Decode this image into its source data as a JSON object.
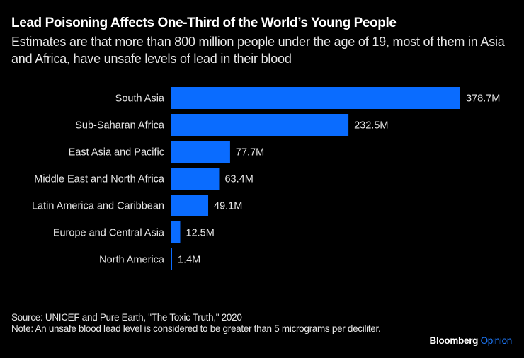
{
  "header": {
    "title": "Lead Poisoning Affects One-Third of the World’s Young People",
    "subtitle": "Estimates are that more than 800 million people under the age of 19, most of them in Asia and Africa, have unsafe levels of lead in their blood"
  },
  "chart_data": {
    "type": "bar",
    "orientation": "horizontal",
    "title": "Lead Poisoning Affects One-Third of the World’s Young People",
    "subtitle": "Estimates are that more than 800 million people under the age of 19, most of them in Asia and Africa, have unsafe levels of lead in their blood",
    "categories": [
      "South Asia",
      "Sub-Saharan Africa",
      "East Asia and Pacific",
      "Middle East and North Africa",
      "Latin America and Caribbean",
      "Europe and Central Asia",
      "North America"
    ],
    "values": [
      378.7,
      232.5,
      77.7,
      63.4,
      49.1,
      12.5,
      1.4
    ],
    "value_labels": [
      "378.7M",
      "232.5M",
      "77.7M",
      "63.4M",
      "49.1M",
      "12.5M",
      "1.4M"
    ],
    "unit": "million people",
    "xlabel": "",
    "ylabel": "",
    "xlim": [
      0,
      378.7
    ],
    "grid": false,
    "legend": "none",
    "bar_color": "#0a6cff"
  },
  "footer": {
    "source": "Source: UNICEF and Pure Earth, \"The Toxic Truth,\" 2020",
    "note": "Note: An unsafe blood lead level is considered to be greater than 5 micrograms per deciliter."
  },
  "brand": {
    "name": "Bloomberg",
    "section": "Opinion",
    "accent": "#1e7bff"
  }
}
